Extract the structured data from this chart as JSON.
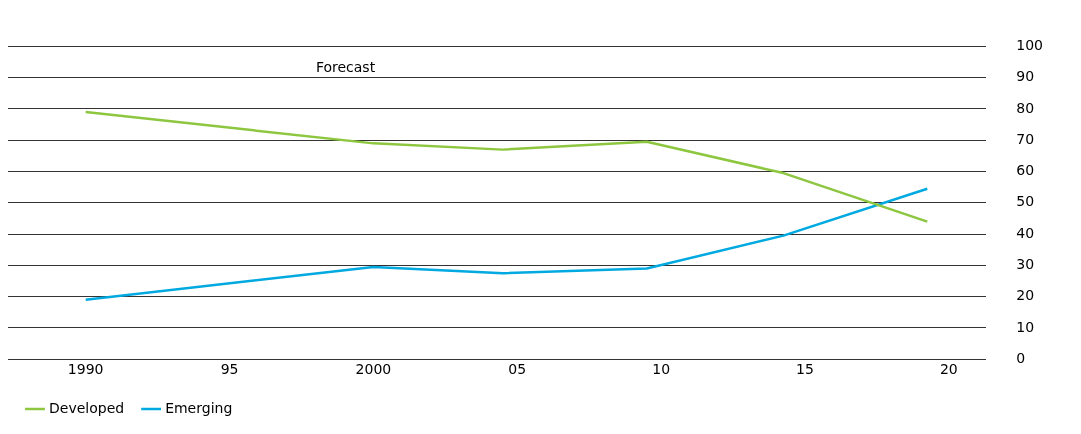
{
  "chart_data": {
    "type": "line",
    "annotations": [
      "Forecast"
    ],
    "x": [
      1990,
      2000,
      2004.5,
      2009.5,
      2014.25,
      2019.25
    ],
    "series": [
      {
        "name": "Developed",
        "color": "#8dc63f",
        "values": [
          79,
          69,
          67,
          69.5,
          59.5,
          44
        ]
      },
      {
        "name": "Emerging",
        "color": "#00a9e0",
        "values": [
          19,
          29.5,
          27.5,
          29,
          39.5,
          54.5
        ]
      }
    ],
    "xlim": [
      1987.3,
      2021.3
    ],
    "xticks": [
      1990,
      {
        "value": 1995,
        "label": "95"
      },
      2000,
      {
        "value": 2005,
        "label": "05"
      },
      {
        "value": 2010,
        "label": "10"
      },
      {
        "value": 2015,
        "label": "15"
      },
      {
        "value": 2020,
        "label": "20"
      }
    ],
    "ylim": [
      0,
      100
    ],
    "yticks": [
      0,
      10,
      20,
      30,
      40,
      50,
      60,
      70,
      80,
      90,
      100
    ],
    "grid": "y",
    "legend": "bottom left",
    "marker": "none",
    "line_style": "solid"
  }
}
